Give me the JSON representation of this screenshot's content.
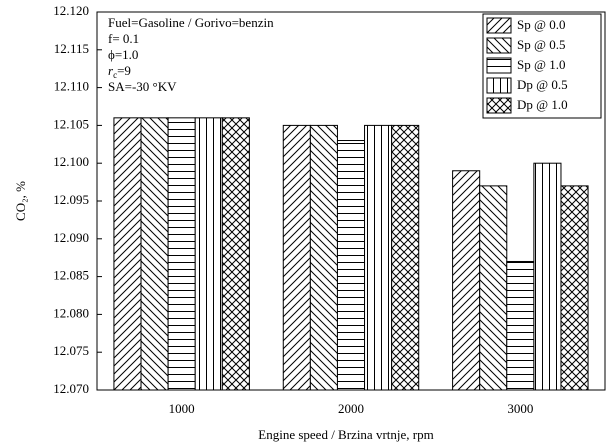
{
  "chart_data": {
    "type": "bar",
    "xlabel": "Engine speed / Brzina vrtnje, rpm",
    "ylabel": "CO₂, %",
    "annotations": [
      "Fuel=Gasoline / Gorivo=benzin",
      "f= 0.1",
      "ϕ=1.0",
      [
        "r",
        "c",
        "=9"
      ],
      "SA=-30 °KV"
    ],
    "categories": [
      "1000",
      "2000",
      "3000"
    ],
    "series": [
      {
        "name": "Sp @ 0.0",
        "color": "#000000",
        "pattern": "diagonal-up",
        "values": [
          12.106,
          12.105,
          12.099
        ]
      },
      {
        "name": "Sp @ 0.5",
        "color": "#000000",
        "pattern": "diagonal-down",
        "values": [
          12.106,
          12.105,
          12.097
        ]
      },
      {
        "name": "Sp @ 1.0",
        "color": "#000000",
        "pattern": "horizontal",
        "values": [
          12.106,
          12.103,
          12.087
        ]
      },
      {
        "name": "Dp @ 0.5",
        "color": "#000000",
        "pattern": "vertical",
        "values": [
          12.106,
          12.105,
          12.1
        ]
      },
      {
        "name": "Dp @ 1.0",
        "color": "#000000",
        "pattern": "cross",
        "values": [
          12.106,
          12.105,
          12.097
        ]
      }
    ],
    "ylim": [
      12.07,
      12.12
    ],
    "yticks": [
      {
        "value": 12.07,
        "label": "12.070"
      },
      12.075,
      {
        "value": 12.08,
        "label": "12.080"
      },
      12.085,
      {
        "value": 12.09,
        "label": "12.090"
      },
      12.095,
      {
        "value": 12.1,
        "label": "12.100"
      },
      12.105,
      {
        "value": 12.11,
        "label": "12.110"
      },
      12.115,
      {
        "value": 12.12,
        "label": "12.120"
      }
    ],
    "legend": "upper right",
    "grid": false
  }
}
